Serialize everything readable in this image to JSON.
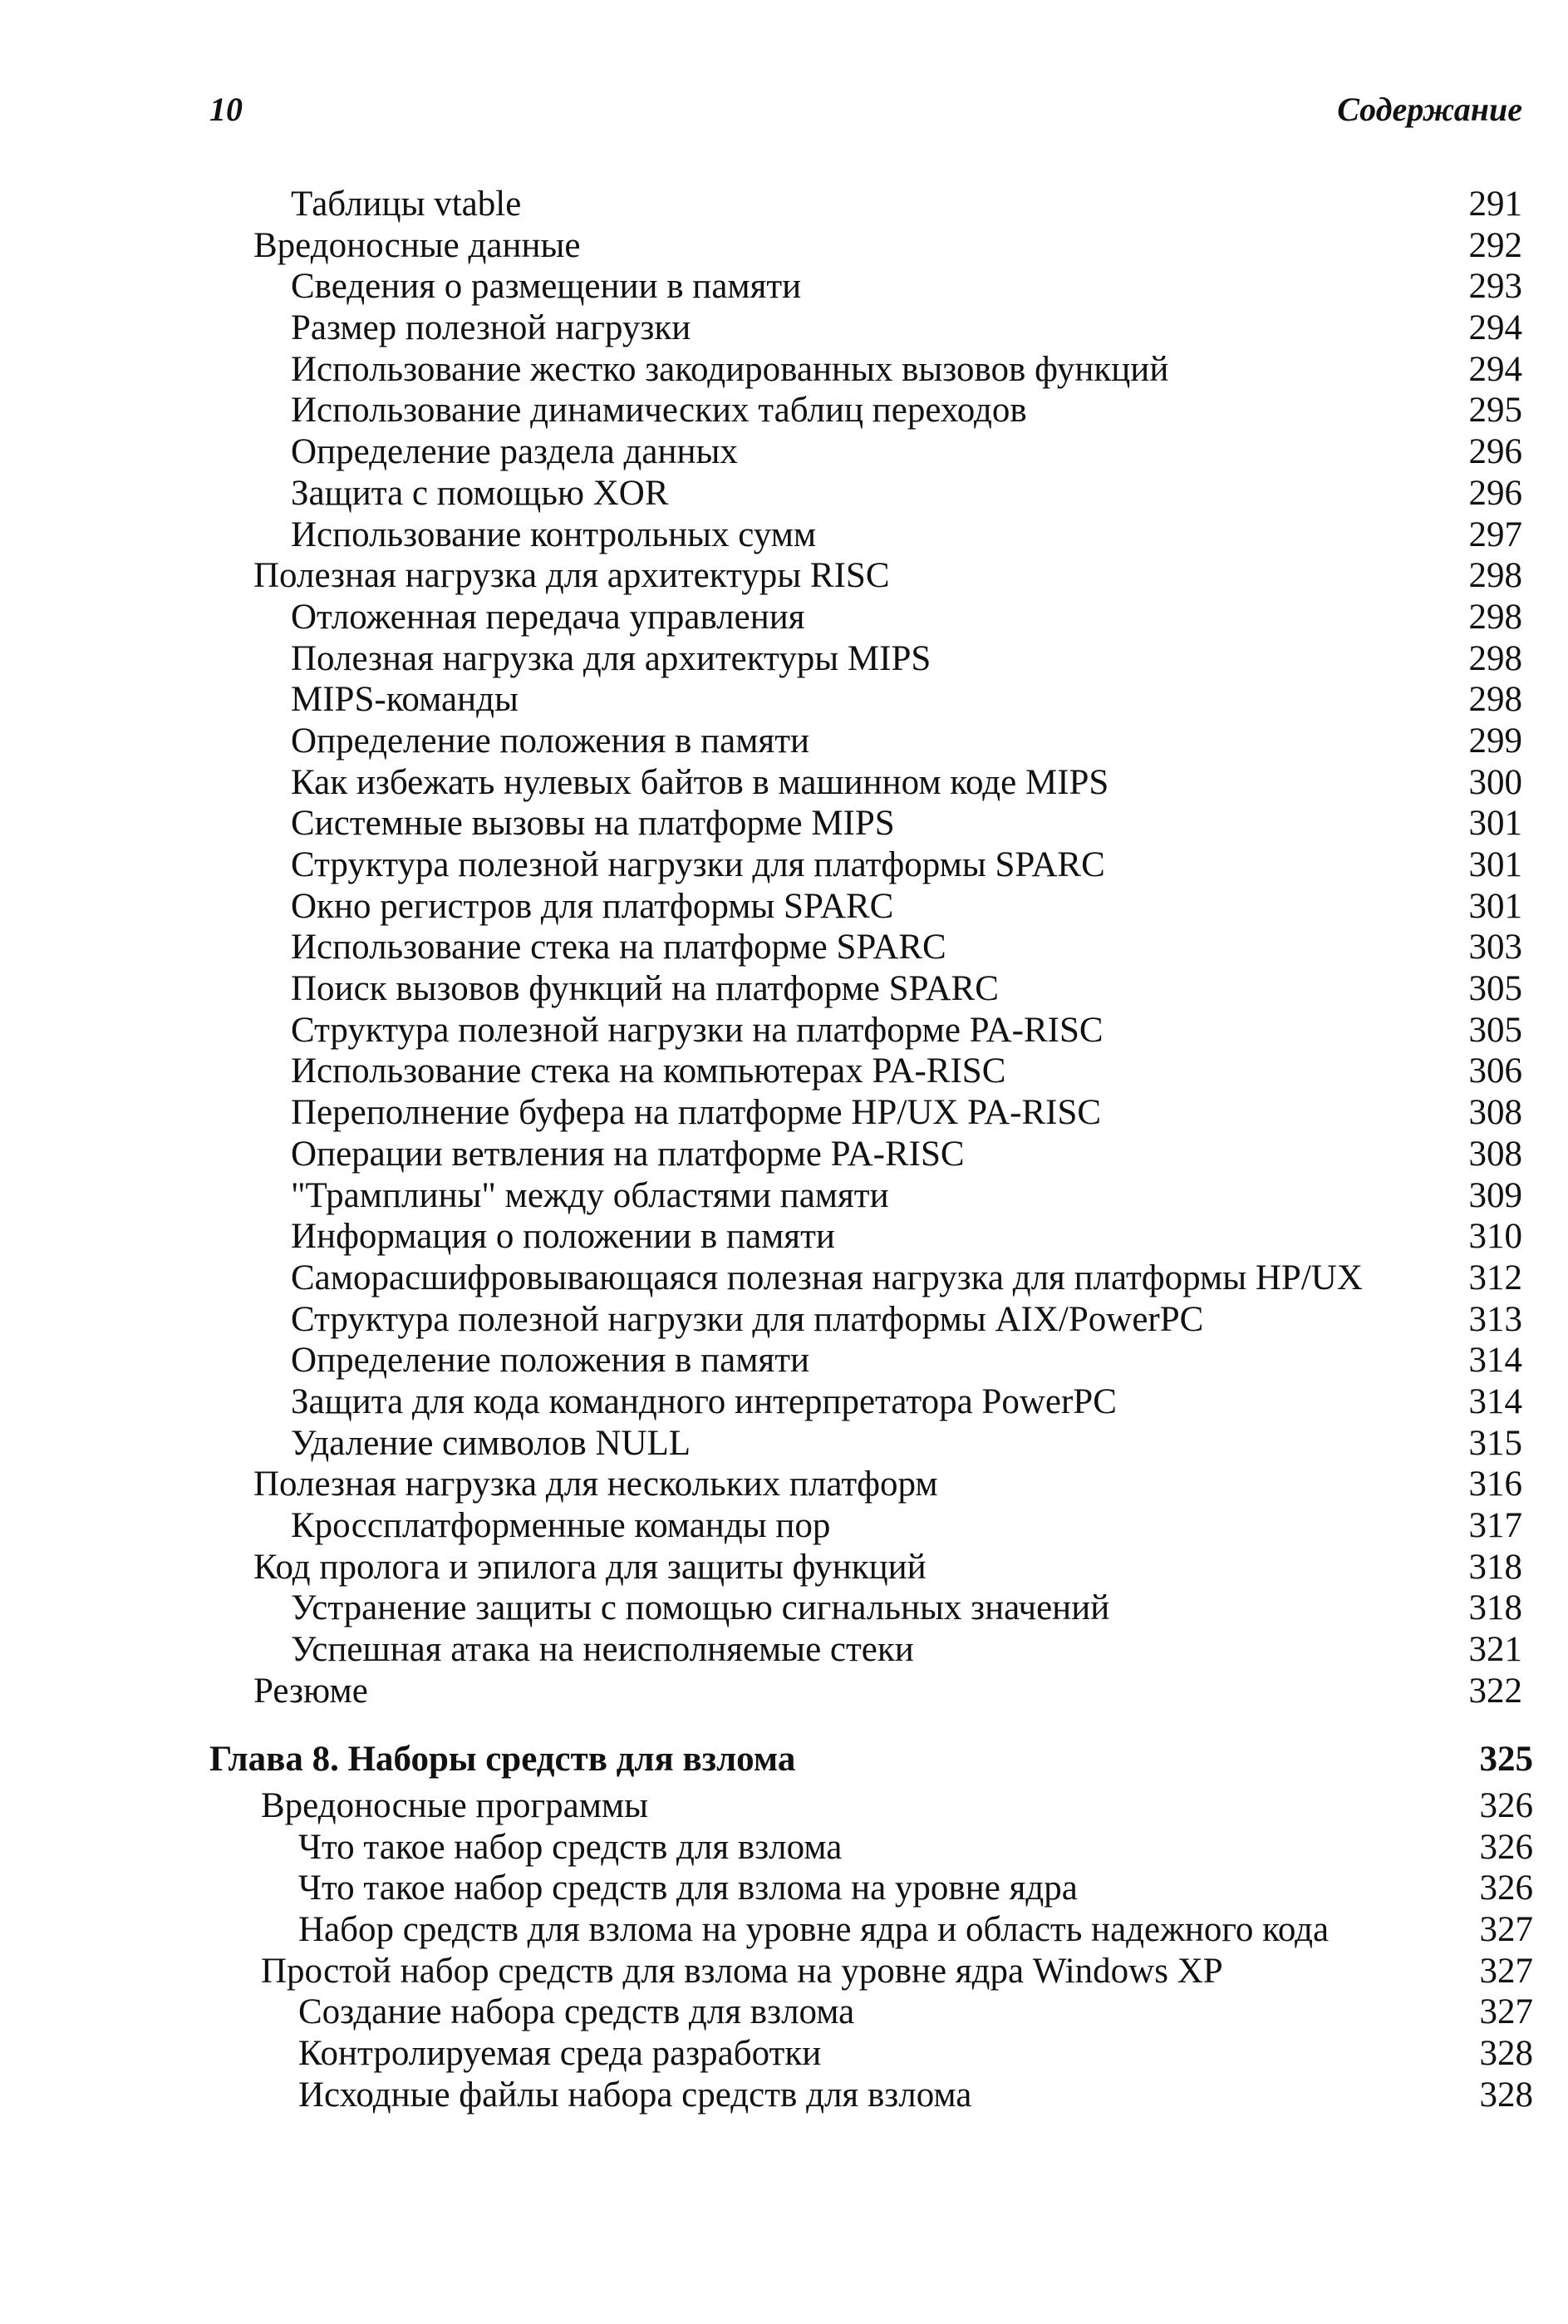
{
  "header": {
    "page_number": "10",
    "title": "Содержание"
  },
  "part1": [
    {
      "level": 2,
      "label": "Таблицы vtable",
      "page": "291"
    },
    {
      "level": 1,
      "label": "Вредоносные данные",
      "page": "292"
    },
    {
      "level": 2,
      "label": "Сведения о размещении в памяти",
      "page": "293"
    },
    {
      "level": 2,
      "label": "Размер полезной нагрузки",
      "page": "294"
    },
    {
      "level": 2,
      "label": "Использование жестко закодированных вызовов функций",
      "page": "294"
    },
    {
      "level": 2,
      "label": "Использование динамических таблиц переходов",
      "page": "295"
    },
    {
      "level": 2,
      "label": "Определение раздела данных",
      "page": "296"
    },
    {
      "level": 2,
      "label": "Защита с помощью XOR",
      "page": "296"
    },
    {
      "level": 2,
      "label": "Использование контрольных сумм",
      "page": "297"
    },
    {
      "level": 1,
      "label": "Полезная нагрузка для архитектуры RISC",
      "page": "298"
    },
    {
      "level": 2,
      "label": "Отложенная передача управления",
      "page": "298"
    },
    {
      "level": 2,
      "label": "Полезная нагрузка для архитектуры MIPS",
      "page": "298"
    },
    {
      "level": 2,
      "label": "MIPS-команды",
      "page": "298"
    },
    {
      "level": 2,
      "label": "Определение положения в памяти",
      "page": "299"
    },
    {
      "level": 2,
      "label": "Как избежать нулевых байтов в машинном коде MIPS",
      "page": "300"
    },
    {
      "level": 2,
      "label": "Системные вызовы на платформе MIPS",
      "page": "301"
    },
    {
      "level": 2,
      "label": "Структура полезной нагрузки для платформы SPARC",
      "page": "301"
    },
    {
      "level": 2,
      "label": "Окно регистров для платформы SPARC",
      "page": "301"
    },
    {
      "level": 2,
      "label": "Использование стека на платформе SPARC",
      "page": "303"
    },
    {
      "level": 2,
      "label": "Поиск вызовов функций на платформе SPARC",
      "page": "305"
    },
    {
      "level": 2,
      "label": "Структура полезной нагрузки на платформе PA-RISC",
      "page": "305"
    },
    {
      "level": 2,
      "label": "Использование стека на компьютерах PA-RISC",
      "page": "306"
    },
    {
      "level": 2,
      "label": "Переполнение буфера на платформе HP/UX PA-RISC",
      "page": "308"
    },
    {
      "level": 2,
      "label": "Операции ветвления на платформе PA-RISC",
      "page": "308"
    },
    {
      "level": 2,
      "label": "\"Трамплины\" между областями памяти",
      "page": "309"
    },
    {
      "level": 2,
      "label": "Информация о положении в памяти",
      "page": "310"
    },
    {
      "level": 2,
      "label": "Саморасшифровывающаяся полезная нагрузка для платформы HP/UX",
      "page": "312"
    },
    {
      "level": 2,
      "label": "Структура полезной нагрузки для платформы AIX/PowerPC",
      "page": "313"
    },
    {
      "level": 2,
      "label": "Определение положения в памяти",
      "page": "314"
    },
    {
      "level": 2,
      "label": "Защита для кода командного интерпретатора PowerPC",
      "page": "314"
    },
    {
      "level": 2,
      "label": "Удаление символов NULL",
      "page": "315"
    },
    {
      "level": 1,
      "label": "Полезная нагрузка для нескольких платформ",
      "page": "316"
    },
    {
      "level": 2,
      "label": "Кроссплатформенные команды пор",
      "page": "317"
    },
    {
      "level": 1,
      "label": "Код пролога и эпилога для защиты функций",
      "page": "318"
    },
    {
      "level": 2,
      "label": "Устранение защиты с помощью сигнальных значений",
      "page": "318"
    },
    {
      "level": 2,
      "label": "Успешная атака на неисполняемые стеки",
      "page": "321"
    },
    {
      "level": 1,
      "label": "Резюме",
      "page": "322"
    }
  ],
  "chapter": {
    "label": "Глава 8. Наборы средств для взлома",
    "page": "325"
  },
  "part2": [
    {
      "level": 1,
      "label": "Вредоносные программы",
      "page": "326"
    },
    {
      "level": 2,
      "label": "Что такое набор средств для взлома",
      "page": "326"
    },
    {
      "level": 2,
      "label": "Что такое набор средств для взлома на уровне ядра",
      "page": "326"
    },
    {
      "level": 2,
      "label": "Набор средств для взлома на уровне ядра и область надежного кода",
      "page": "327"
    },
    {
      "level": 1,
      "label": "Простой набор средств для взлома на уровне ядра Windows XP",
      "page": "327"
    },
    {
      "level": 2,
      "label": "Создание набора средств для взлома",
      "page": "327"
    },
    {
      "level": 2,
      "label": "Контролируемая среда разработки",
      "page": "328"
    },
    {
      "level": 2,
      "label": "Исходные файлы набора средств для взлома",
      "page": "328"
    }
  ]
}
